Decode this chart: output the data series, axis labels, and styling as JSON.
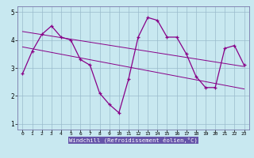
{
  "x": [
    0,
    1,
    2,
    3,
    4,
    5,
    6,
    7,
    8,
    9,
    10,
    11,
    12,
    13,
    14,
    15,
    16,
    17,
    18,
    19,
    20,
    21,
    22,
    23
  ],
  "y_main": [
    2.8,
    3.6,
    4.2,
    4.5,
    4.1,
    4.0,
    3.3,
    3.1,
    2.1,
    1.7,
    1.4,
    2.6,
    4.1,
    4.8,
    4.7,
    4.1,
    4.1,
    3.5,
    2.7,
    2.3,
    2.3,
    3.7,
    3.8,
    3.1
  ],
  "trend1_x": [
    0,
    23
  ],
  "trend1_y": [
    4.3,
    3.05
  ],
  "trend2_x": [
    0,
    23
  ],
  "trend2_y": [
    3.75,
    2.25
  ],
  "line_color": "#880088",
  "bg_color": "#c8e8f0",
  "grid_color": "#99bbcc",
  "xlabel": "Windchill (Refroidissement éolien,°C)",
  "xlim": [
    -0.5,
    23.5
  ],
  "ylim": [
    0.8,
    5.2
  ],
  "yticks": [
    1,
    2,
    3,
    4,
    5
  ],
  "xticks": [
    0,
    1,
    2,
    3,
    4,
    5,
    6,
    7,
    8,
    9,
    10,
    11,
    12,
    13,
    14,
    15,
    16,
    17,
    18,
    19,
    20,
    21,
    22,
    23
  ],
  "spine_color": "#7777aa",
  "xlabel_color": "#220022",
  "title_bg": "#8888bb"
}
